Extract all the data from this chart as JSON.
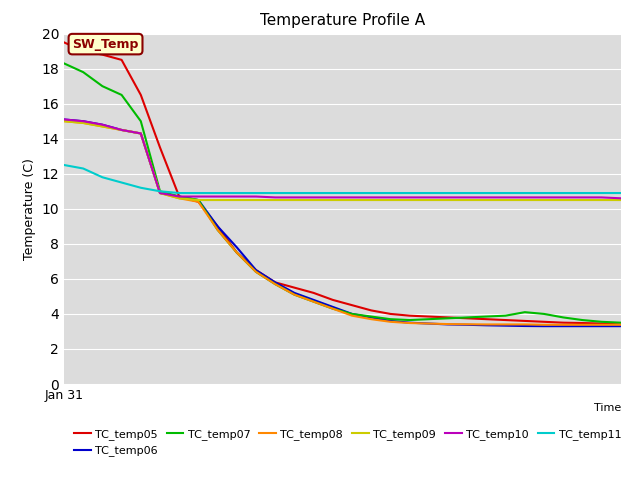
{
  "title": "Temperature Profile A",
  "ylabel": "Temperature (C)",
  "xlabel": "Time",
  "ylim": [
    0,
    20
  ],
  "plot_bg": "#dcdcdc",
  "fig_bg": "#ffffff",
  "annotation": {
    "text": "SW_Temp",
    "text_color": "#8B0000",
    "box_color": "#ffffcc",
    "edge_color": "#8B0000"
  },
  "series_order": [
    "TC_temp05",
    "TC_temp06",
    "TC_temp07",
    "TC_temp08",
    "TC_temp09",
    "TC_temp10",
    "TC_temp11"
  ],
  "series": {
    "TC_temp05": {
      "color": "#dd0000",
      "data_points": [
        19.5,
        19.0,
        18.8,
        18.5,
        16.5,
        13.5,
        10.7,
        10.4,
        9.0,
        7.5,
        6.5,
        5.8,
        5.5,
        5.2,
        4.8,
        4.5,
        4.2,
        4.0,
        3.9,
        3.85,
        3.8,
        3.75,
        3.7,
        3.65,
        3.6,
        3.55,
        3.5,
        3.48,
        3.45,
        3.4
      ]
    },
    "TC_temp06": {
      "color": "#0000cc",
      "data_points": [
        15.1,
        15.0,
        14.8,
        14.5,
        14.3,
        10.9,
        10.7,
        10.5,
        9.0,
        7.8,
        6.5,
        5.8,
        5.2,
        4.8,
        4.4,
        4.0,
        3.8,
        3.6,
        3.5,
        3.45,
        3.4,
        3.38,
        3.35,
        3.33,
        3.31,
        3.3,
        3.3,
        3.3,
        3.3,
        3.3
      ]
    },
    "TC_temp07": {
      "color": "#00bb00",
      "data_points": [
        18.3,
        17.8,
        17.0,
        16.5,
        15.0,
        11.0,
        10.7,
        10.5,
        8.8,
        7.5,
        6.4,
        5.7,
        5.1,
        4.7,
        4.3,
        4.0,
        3.85,
        3.7,
        3.65,
        3.7,
        3.75,
        3.8,
        3.85,
        3.9,
        4.1,
        4.0,
        3.8,
        3.65,
        3.55,
        3.5
      ]
    },
    "TC_temp08": {
      "color": "#ff8800",
      "data_points": [
        15.0,
        14.9,
        14.7,
        14.5,
        14.3,
        10.9,
        10.6,
        10.4,
        8.8,
        7.5,
        6.4,
        5.7,
        5.1,
        4.7,
        4.3,
        3.9,
        3.7,
        3.55,
        3.48,
        3.45,
        3.42,
        3.41,
        3.4,
        3.4,
        3.4,
        3.38,
        3.38,
        3.38,
        3.38,
        3.38
      ]
    },
    "TC_temp09": {
      "color": "#cccc00",
      "data_points": [
        15.0,
        14.9,
        14.7,
        14.5,
        14.3,
        10.9,
        10.6,
        10.5,
        10.5,
        10.5,
        10.5,
        10.5,
        10.5,
        10.5,
        10.5,
        10.5,
        10.5,
        10.5,
        10.5,
        10.5,
        10.5,
        10.5,
        10.5,
        10.5,
        10.5,
        10.5,
        10.5,
        10.5,
        10.5,
        10.5
      ]
    },
    "TC_temp10": {
      "color": "#bb00bb",
      "data_points": [
        15.1,
        15.0,
        14.8,
        14.5,
        14.3,
        10.9,
        10.7,
        10.7,
        10.7,
        10.7,
        10.7,
        10.65,
        10.65,
        10.65,
        10.65,
        10.65,
        10.65,
        10.65,
        10.65,
        10.65,
        10.65,
        10.65,
        10.65,
        10.65,
        10.65,
        10.65,
        10.65,
        10.65,
        10.65,
        10.6
      ]
    },
    "TC_temp11": {
      "color": "#00cccc",
      "data_points": [
        12.5,
        12.3,
        11.8,
        11.5,
        11.2,
        11.0,
        10.9,
        10.9,
        10.9,
        10.9,
        10.9,
        10.9,
        10.9,
        10.9,
        10.9,
        10.9,
        10.9,
        10.9,
        10.9,
        10.9,
        10.9,
        10.9,
        10.9,
        10.9,
        10.9,
        10.9,
        10.9,
        10.9,
        10.9,
        10.9
      ]
    }
  }
}
